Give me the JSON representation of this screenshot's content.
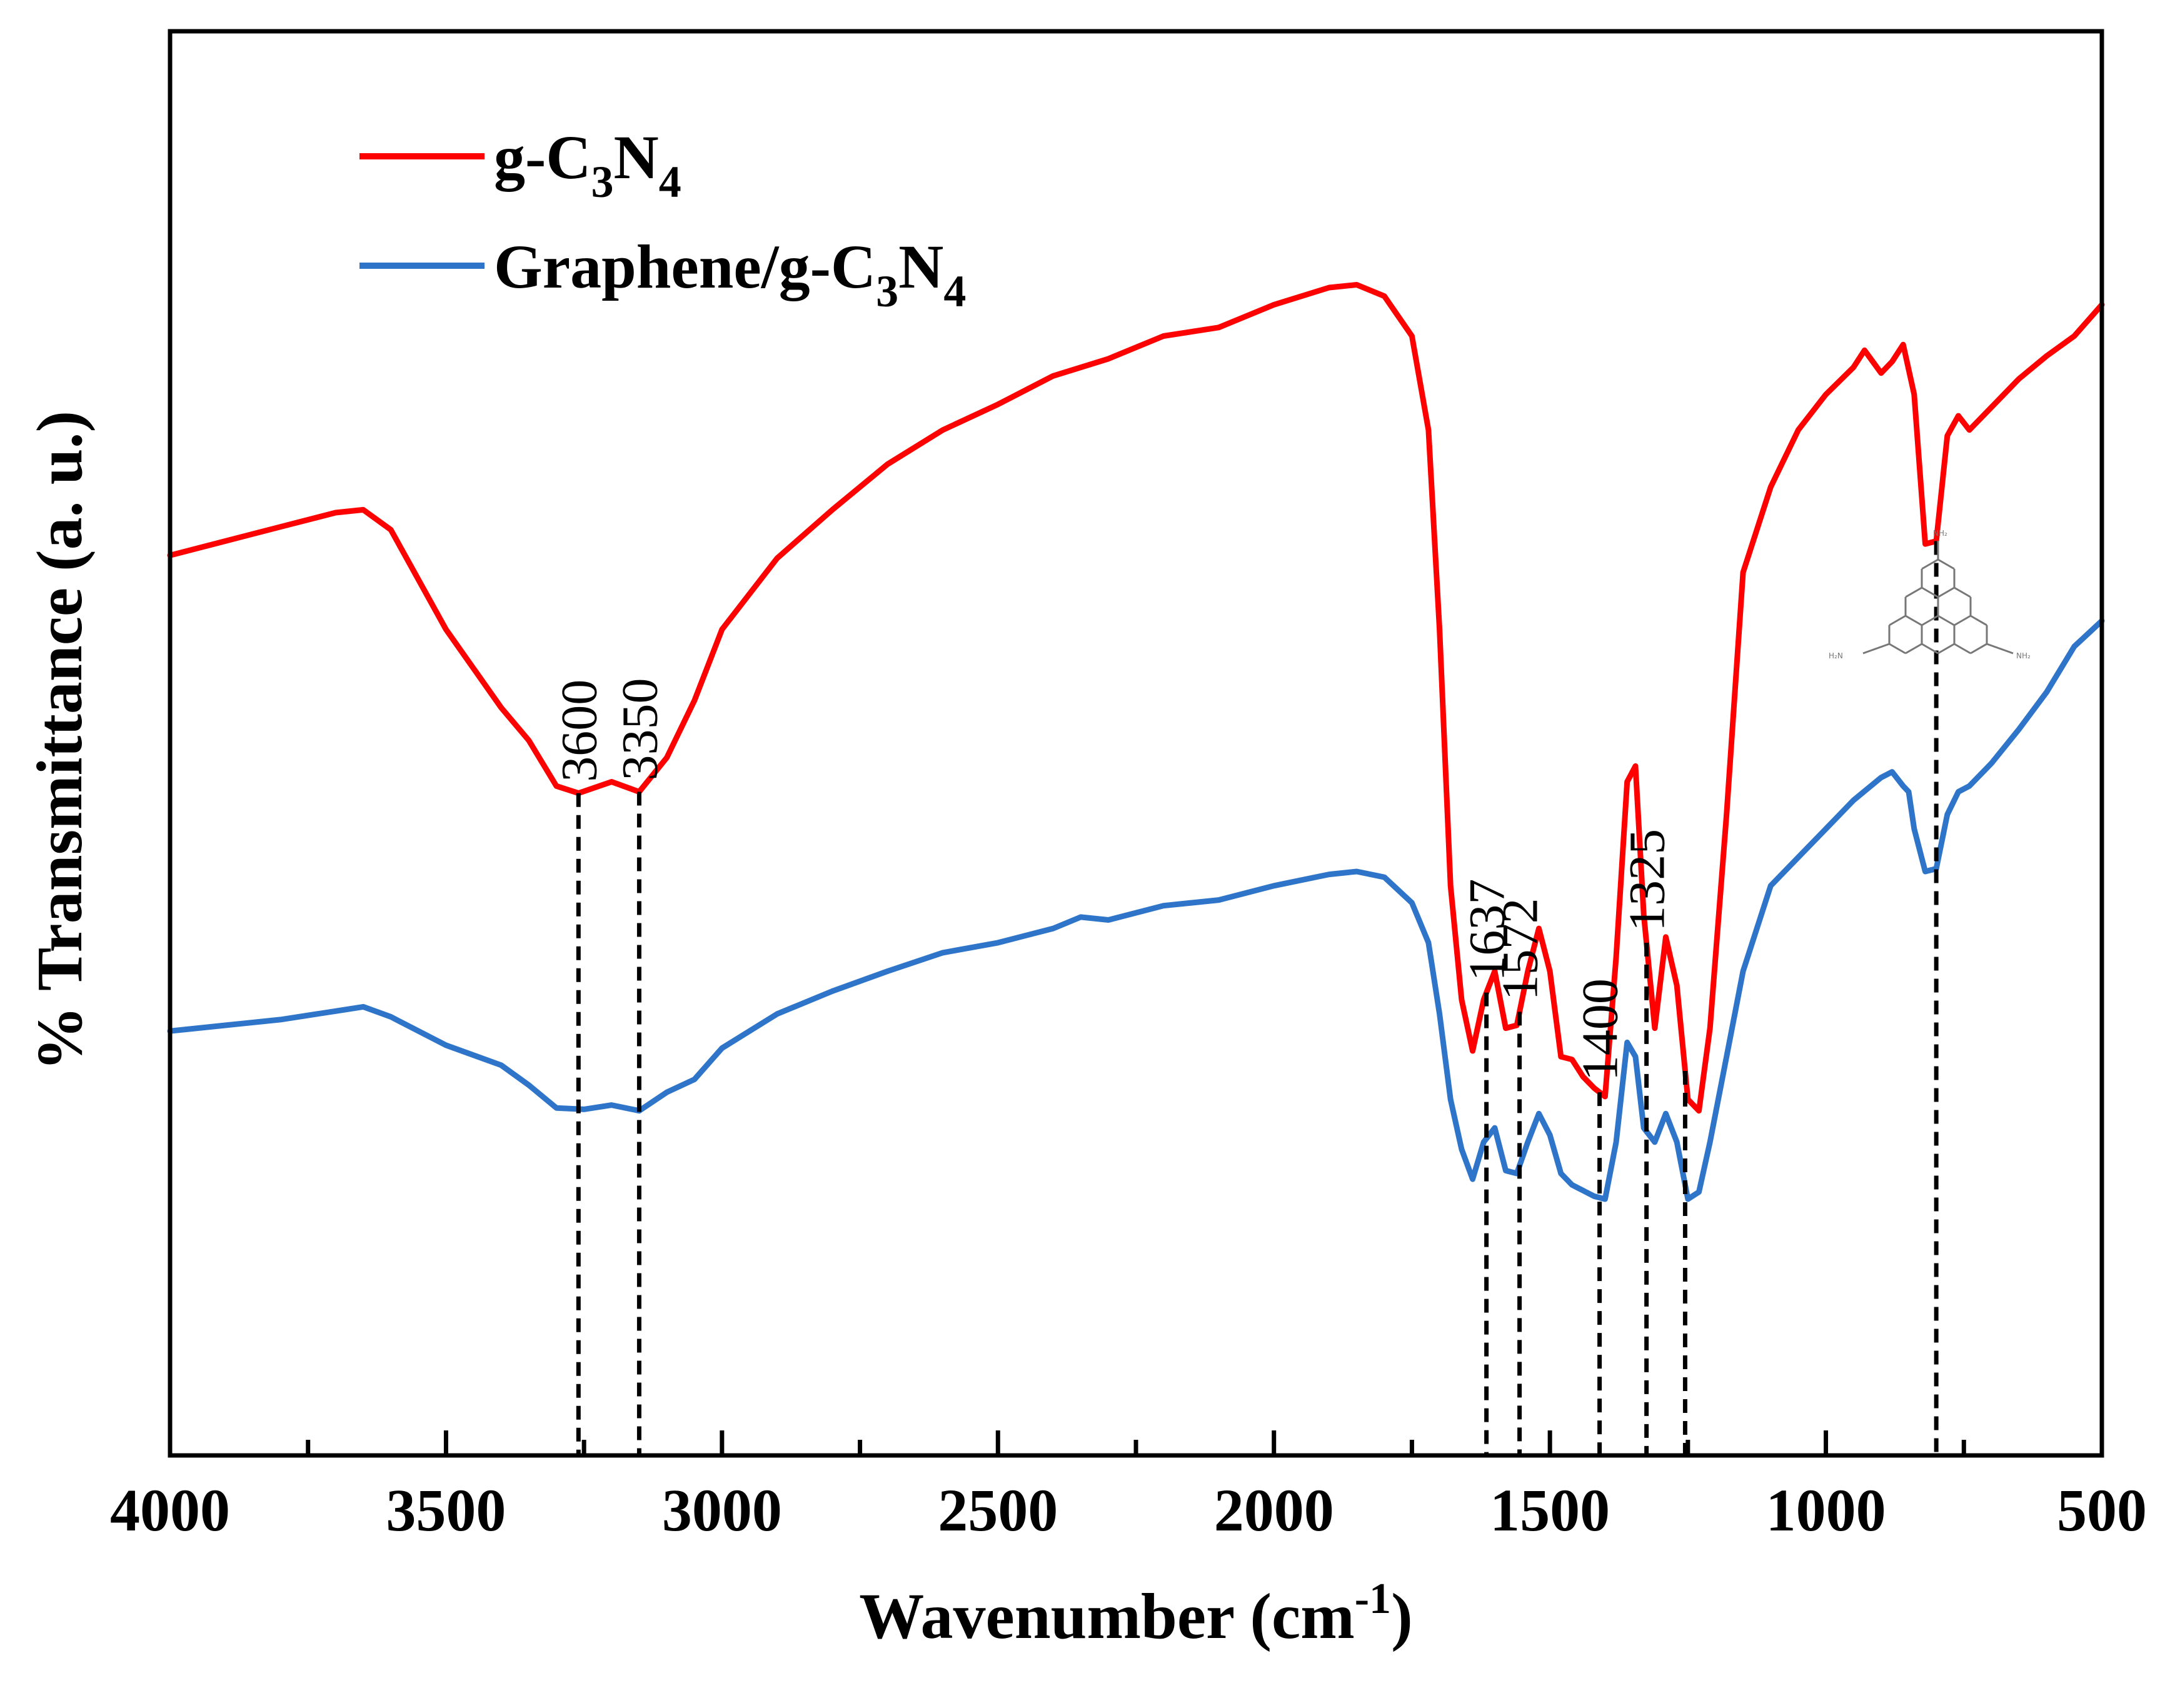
{
  "chart_data": {
    "type": "line",
    "title": "",
    "xlabel": "Wavenumber",
    "xlabel_unit_prefix": "cm",
    "xlabel_unit_exponent": "-1",
    "ylabel": "% Transmittance  (a. u.)",
    "xlim": [
      4000,
      500
    ],
    "ylim": [
      0,
      100
    ],
    "x_reversed": true,
    "x_ticks": [
      4000,
      3500,
      3000,
      2500,
      2000,
      1500,
      1000,
      500
    ],
    "y_ticks_shown": false,
    "legend_position": "top-left",
    "series": [
      {
        "name": "g-C3N4",
        "label_main": "g-C",
        "label_sub1": "3",
        "label_mid": "N",
        "label_sub2": "4",
        "color": "#ff0000",
        "points": [
          [
            4000,
            63.2
          ],
          [
            3900,
            64.2
          ],
          [
            3800,
            65.2
          ],
          [
            3700,
            66.2
          ],
          [
            3650,
            66.4
          ],
          [
            3600,
            65
          ],
          [
            3500,
            58
          ],
          [
            3400,
            52.5
          ],
          [
            3350,
            50.2
          ],
          [
            3300,
            47
          ],
          [
            3260,
            46.5
          ],
          [
            3200,
            47.3
          ],
          [
            3150,
            46.6
          ],
          [
            3100,
            49
          ],
          [
            3050,
            53
          ],
          [
            3000,
            58
          ],
          [
            2900,
            63
          ],
          [
            2800,
            66.4
          ],
          [
            2700,
            69.6
          ],
          [
            2600,
            72
          ],
          [
            2500,
            73.8
          ],
          [
            2400,
            75.8
          ],
          [
            2300,
            77
          ],
          [
            2200,
            78.6
          ],
          [
            2100,
            79.2
          ],
          [
            2000,
            80.8
          ],
          [
            1900,
            82
          ],
          [
            1850,
            82.2
          ],
          [
            1800,
            81.4
          ],
          [
            1750,
            78.6
          ],
          [
            1720,
            72
          ],
          [
            1700,
            58
          ],
          [
            1680,
            40
          ],
          [
            1660,
            32
          ],
          [
            1640,
            28.4
          ],
          [
            1620,
            32
          ],
          [
            1600,
            34
          ],
          [
            1580,
            30
          ],
          [
            1560,
            30.2
          ],
          [
            1540,
            34
          ],
          [
            1520,
            37
          ],
          [
            1500,
            34
          ],
          [
            1480,
            28
          ],
          [
            1460,
            27.8
          ],
          [
            1440,
            26.6
          ],
          [
            1420,
            25.8
          ],
          [
            1400,
            25.2
          ],
          [
            1380,
            35
          ],
          [
            1360,
            47.3
          ],
          [
            1345,
            48.4
          ],
          [
            1330,
            38
          ],
          [
            1310,
            30
          ],
          [
            1290,
            36.4
          ],
          [
            1270,
            33
          ],
          [
            1250,
            25
          ],
          [
            1230,
            24.2
          ],
          [
            1210,
            30
          ],
          [
            1180,
            45
          ],
          [
            1150,
            62
          ],
          [
            1100,
            68
          ],
          [
            1050,
            72
          ],
          [
            1000,
            74.5
          ],
          [
            950,
            76.4
          ],
          [
            930,
            77.6
          ],
          [
            900,
            76
          ],
          [
            880,
            76.8
          ],
          [
            860,
            78
          ],
          [
            840,
            74.5
          ],
          [
            820,
            64
          ],
          [
            800,
            64.2
          ],
          [
            780,
            71.6
          ],
          [
            760,
            73
          ],
          [
            740,
            72
          ],
          [
            700,
            73.6
          ],
          [
            650,
            75.6
          ],
          [
            600,
            77.2
          ],
          [
            550,
            78.6
          ],
          [
            500,
            80.8
          ]
        ]
      },
      {
        "name": "Graphene/g-C3N4",
        "label_main": "Graphene/g-C",
        "label_sub1": "3",
        "label_mid": "N",
        "label_sub2": "4",
        "color": "#2e75c9",
        "points": [
          [
            4000,
            29.8
          ],
          [
            3900,
            30.2
          ],
          [
            3800,
            30.6
          ],
          [
            3700,
            31.2
          ],
          [
            3650,
            31.5
          ],
          [
            3600,
            30.8
          ],
          [
            3500,
            28.8
          ],
          [
            3400,
            27.4
          ],
          [
            3350,
            26
          ],
          [
            3300,
            24.4
          ],
          [
            3250,
            24.3
          ],
          [
            3200,
            24.6
          ],
          [
            3150,
            24.2
          ],
          [
            3100,
            25.5
          ],
          [
            3050,
            26.4
          ],
          [
            3000,
            28.6
          ],
          [
            2900,
            31
          ],
          [
            2800,
            32.6
          ],
          [
            2700,
            34
          ],
          [
            2600,
            35.3
          ],
          [
            2500,
            36
          ],
          [
            2400,
            37
          ],
          [
            2350,
            37.8
          ],
          [
            2300,
            37.6
          ],
          [
            2200,
            38.6
          ],
          [
            2100,
            39
          ],
          [
            2000,
            40
          ],
          [
            1900,
            40.8
          ],
          [
            1850,
            41
          ],
          [
            1800,
            40.6
          ],
          [
            1750,
            38.8
          ],
          [
            1720,
            36
          ],
          [
            1700,
            31
          ],
          [
            1680,
            25
          ],
          [
            1660,
            21.5
          ],
          [
            1640,
            19.4
          ],
          [
            1620,
            22
          ],
          [
            1600,
            23
          ],
          [
            1580,
            20
          ],
          [
            1560,
            19.8
          ],
          [
            1540,
            22
          ],
          [
            1520,
            24
          ],
          [
            1500,
            22.5
          ],
          [
            1480,
            19.8
          ],
          [
            1460,
            19
          ],
          [
            1440,
            18.6
          ],
          [
            1420,
            18.2
          ],
          [
            1400,
            18
          ],
          [
            1380,
            22
          ],
          [
            1360,
            29
          ],
          [
            1345,
            28
          ],
          [
            1330,
            23
          ],
          [
            1310,
            22
          ],
          [
            1290,
            24
          ],
          [
            1270,
            22
          ],
          [
            1250,
            18
          ],
          [
            1230,
            18.5
          ],
          [
            1210,
            22
          ],
          [
            1180,
            28
          ],
          [
            1150,
            34
          ],
          [
            1100,
            40
          ],
          [
            1050,
            42
          ],
          [
            1000,
            44
          ],
          [
            950,
            46
          ],
          [
            900,
            47.6
          ],
          [
            880,
            48
          ],
          [
            860,
            47
          ],
          [
            850,
            46.6
          ],
          [
            840,
            44
          ],
          [
            820,
            41
          ],
          [
            800,
            41.2
          ],
          [
            780,
            45
          ],
          [
            760,
            46.6
          ],
          [
            740,
            47
          ],
          [
            700,
            48.6
          ],
          [
            650,
            51
          ],
          [
            600,
            53.6
          ],
          [
            550,
            56.8
          ],
          [
            500,
            58.6
          ]
        ]
      }
    ],
    "annotations": [
      {
        "label": "3600",
        "x": 3260
      },
      {
        "label": "3350",
        "x": 3150
      },
      {
        "label": "1637",
        "x": 1615
      },
      {
        "label": "1572",
        "x": 1555
      },
      {
        "label": "1400",
        "x": 1410
      },
      {
        "label": "1325",
        "x": 1325
      },
      {
        "label": "",
        "x": 1255
      },
      {
        "label": "",
        "x": 800
      }
    ]
  }
}
